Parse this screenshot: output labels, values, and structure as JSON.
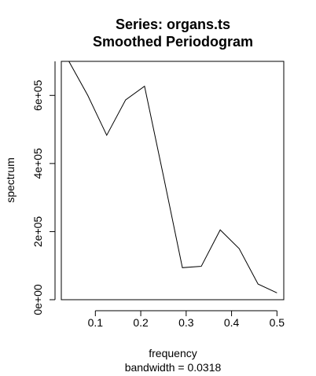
{
  "chart_data": {
    "type": "line",
    "title": "Series: organs.ts",
    "subtitle": "Smoothed Periodogram",
    "xlabel": "frequency",
    "xlabel_note": "bandwidth = 0.0318",
    "ylabel": "spectrum",
    "xlim": [
      0.025,
      0.515
    ],
    "ylim": [
      0,
      700000
    ],
    "x_ticks": [
      0.1,
      0.2,
      0.3,
      0.4,
      0.5
    ],
    "x_tick_labels": [
      "0.1",
      "0.2",
      "0.3",
      "0.4",
      "0.5"
    ],
    "y_ticks": [
      0,
      200000,
      400000,
      600000
    ],
    "y_tick_labels": [
      "0e+00",
      "2e+05",
      "4e+05",
      "6e+05"
    ],
    "grid": false,
    "series": [
      {
        "x": [
          0.0417,
          0.0833,
          0.125,
          0.1667,
          0.2083,
          0.25,
          0.2917,
          0.3333,
          0.375,
          0.4167,
          0.4583,
          0.5
        ],
        "values": [
          700000,
          600000,
          483000,
          587000,
          627000,
          363000,
          94000,
          98000,
          205000,
          150000,
          46000,
          20000
        ]
      }
    ]
  }
}
